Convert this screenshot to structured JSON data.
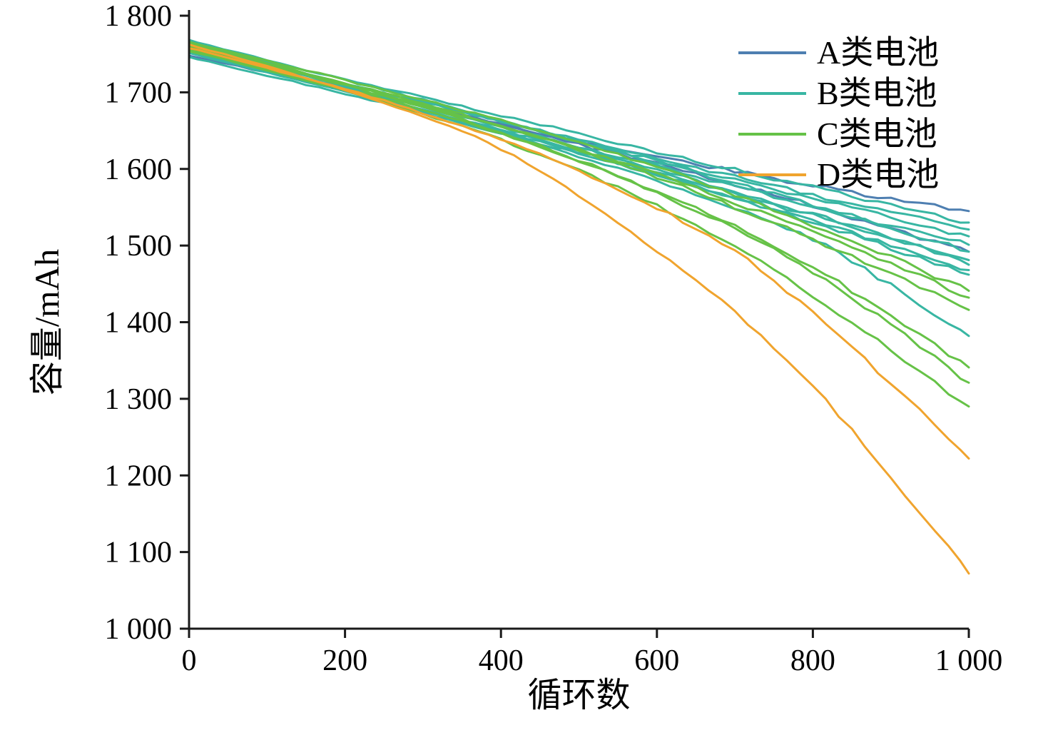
{
  "figure": {
    "background": "#ffffff",
    "axis_color": "#1a1a1a",
    "x_title": "循环数",
    "y_title": "容量/mAh"
  },
  "legend": {
    "position": "upper right",
    "entries": [
      {
        "label": "A类电池",
        "color": "#4e7fb1"
      },
      {
        "label": "B类电池",
        "color": "#38b6a3"
      },
      {
        "label": "C类电池",
        "color": "#66c247"
      },
      {
        "label": "D类电池",
        "color": "#f0a42e"
      }
    ]
  },
  "chart_data": {
    "type": "line",
    "title": "",
    "xlabel": "循环数",
    "ylabel": "容量/mAh",
    "xlim": [
      0,
      1000
    ],
    "ylim": [
      1000,
      1800
    ],
    "grid": false,
    "legend_position": "upper right",
    "x_ticks": [
      {
        "v": 0,
        "label": "0"
      },
      {
        "v": 200,
        "label": "200"
      },
      {
        "v": 400,
        "label": "400"
      },
      {
        "v": 600,
        "label": "600"
      },
      {
        "v": 800,
        "label": "800"
      },
      {
        "v": 1000,
        "label": "1 000"
      }
    ],
    "y_ticks": [
      {
        "v": 1000,
        "label": "1 000"
      },
      {
        "v": 1100,
        "label": "1 100"
      },
      {
        "v": 1200,
        "label": "1 200"
      },
      {
        "v": 1300,
        "label": "1 300"
      },
      {
        "v": 1400,
        "label": "1 400"
      },
      {
        "v": 1500,
        "label": "1 500"
      },
      {
        "v": 1600,
        "label": "1 600"
      },
      {
        "v": 1700,
        "label": "1 700"
      },
      {
        "v": 1800,
        "label": "1 800"
      }
    ],
    "x": [
      0,
      100,
      200,
      300,
      400,
      500,
      600,
      700,
      800,
      900,
      1000
    ],
    "series": [
      {
        "name": "A类电池-1",
        "class": "A类电池",
        "color": "#4e7fb1",
        "values": [
          1748,
          1726,
          1705,
          1682,
          1658,
          1636,
          1616,
          1597,
          1578,
          1560,
          1545
        ]
      },
      {
        "name": "A类电池-2",
        "class": "A类电池",
        "color": "#4e7fb1",
        "values": [
          1752,
          1729,
          1706,
          1682,
          1657,
          1632,
          1607,
          1580,
          1552,
          1521,
          1492
        ]
      },
      {
        "name": "B类电池-1",
        "class": "B类电池",
        "color": "#38b6a3",
        "values": [
          1765,
          1740,
          1717,
          1694,
          1670,
          1646,
          1622,
          1599,
          1576,
          1553,
          1530
        ]
      },
      {
        "name": "B类电池-2",
        "class": "B类电池",
        "color": "#38b6a3",
        "values": [
          1758,
          1734,
          1711,
          1687,
          1663,
          1638,
          1614,
          1590,
          1566,
          1543,
          1521
        ]
      },
      {
        "name": "B类电池-3",
        "class": "B类电池",
        "color": "#38b6a3",
        "values": [
          1762,
          1737,
          1712,
          1687,
          1662,
          1636,
          1611,
          1586,
          1561,
          1536,
          1512
        ]
      },
      {
        "name": "B类电池-4",
        "class": "B类电池",
        "color": "#38b6a3",
        "values": [
          1755,
          1730,
          1706,
          1681,
          1655,
          1629,
          1603,
          1577,
          1551,
          1526,
          1501
        ]
      },
      {
        "name": "B类电池-5",
        "class": "B类电池",
        "color": "#38b6a3",
        "values": [
          1768,
          1742,
          1716,
          1690,
          1663,
          1636,
          1609,
          1581,
          1553,
          1523,
          1492
        ]
      },
      {
        "name": "B类电池-6",
        "class": "B类电池",
        "color": "#38b6a3",
        "values": [
          1751,
          1726,
          1701,
          1676,
          1650,
          1623,
          1596,
          1568,
          1539,
          1510,
          1481
        ]
      },
      {
        "name": "B类电池-7",
        "class": "B类电池",
        "color": "#38b6a3",
        "values": [
          1760,
          1734,
          1708,
          1682,
          1655,
          1627,
          1599,
          1570,
          1541,
          1511,
          1475
        ]
      },
      {
        "name": "B类电池-8",
        "class": "B类电池",
        "color": "#38b6a3",
        "values": [
          1746,
          1722,
          1698,
          1673,
          1647,
          1620,
          1592,
          1563,
          1533,
          1501,
          1468
        ]
      },
      {
        "name": "B类电池-9",
        "class": "B类电池",
        "color": "#38b6a3",
        "values": [
          1757,
          1731,
          1705,
          1678,
          1650,
          1622,
          1593,
          1562,
          1530,
          1497,
          1462
        ]
      },
      {
        "name": "B类电池-10",
        "class": "B类电池",
        "color": "#38b6a3",
        "values": [
          1753,
          1728,
          1702,
          1675,
          1647,
          1617,
          1585,
          1549,
          1508,
          1448,
          1382
        ]
      },
      {
        "name": "C类电池-1",
        "class": "C类电池",
        "color": "#66c247",
        "values": [
          1766,
          1741,
          1716,
          1690,
          1663,
          1634,
          1602,
          1566,
          1527,
          1485,
          1441
        ]
      },
      {
        "name": "C类电池-2",
        "class": "C类电池",
        "color": "#66c247",
        "values": [
          1759,
          1735,
          1710,
          1684,
          1656,
          1626,
          1593,
          1556,
          1517,
          1476,
          1432
        ]
      },
      {
        "name": "C类电池-3",
        "class": "C类电池",
        "color": "#66c247",
        "values": [
          1763,
          1738,
          1712,
          1685,
          1656,
          1624,
          1589,
          1550,
          1508,
          1463,
          1416
        ]
      },
      {
        "name": "C类电池-4",
        "class": "C类电池",
        "color": "#66c247",
        "values": [
          1756,
          1731,
          1705,
          1677,
          1646,
          1611,
          1571,
          1525,
          1472,
          1408,
          1341
        ]
      },
      {
        "name": "C类电池-5",
        "class": "C类电池",
        "color": "#66c247",
        "values": [
          1761,
          1736,
          1709,
          1680,
          1648,
          1611,
          1569,
          1521,
          1465,
          1397,
          1321
        ]
      },
      {
        "name": "C类电池-6",
        "class": "C类电池",
        "color": "#66c247",
        "values": [
          1754,
          1729,
          1702,
          1672,
          1638,
          1598,
          1552,
          1498,
          1435,
          1363,
          1290
        ]
      },
      {
        "name": "D类电池-1",
        "class": "D类电池",
        "color": "#f0a42e",
        "values": [
          1758,
          1732,
          1704,
          1673,
          1638,
          1597,
          1549,
          1493,
          1412,
          1320,
          1222
        ]
      },
      {
        "name": "D类电池-2",
        "class": "D类电池",
        "color": "#f0a42e",
        "values": [
          1762,
          1734,
          1703,
          1668,
          1626,
          1564,
          1492,
          1414,
          1316,
          1198,
          1072
        ]
      }
    ]
  }
}
